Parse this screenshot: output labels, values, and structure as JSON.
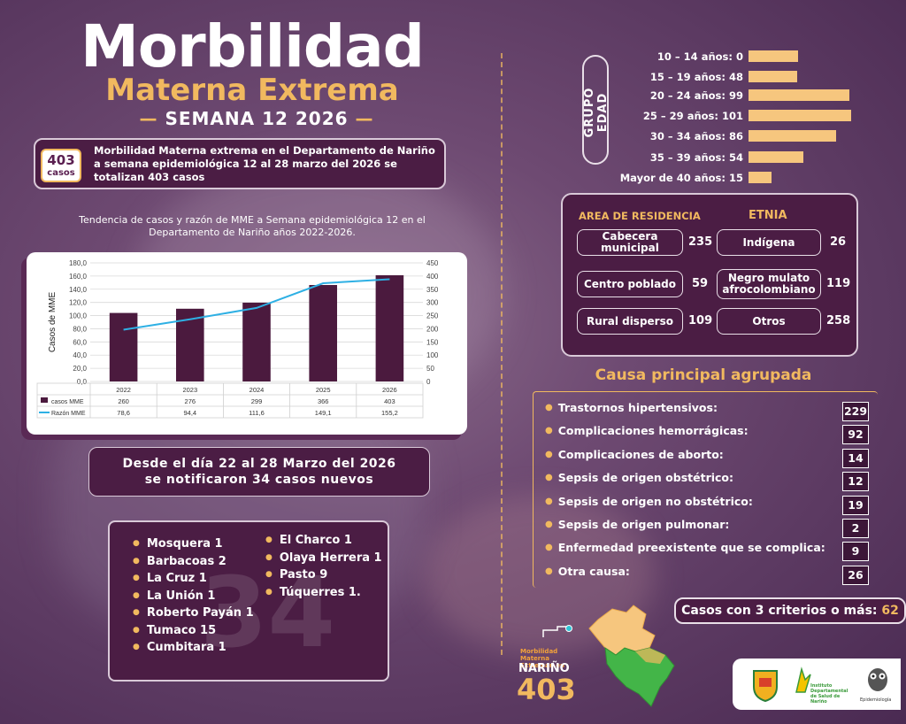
{
  "header": {
    "title_line1": "Morbilidad",
    "title_line2": "Materna Extrema",
    "week_line": "SEMANA 12 2026"
  },
  "summary": {
    "badge_number": "403",
    "badge_label": "casos",
    "text": "Morbilidad Materna extrema en el Departamento de Nariño a semana epidemiológica 12 al 28 marzo del 2026 se totalizan 403 casos"
  },
  "chart_section": {
    "title": "Tendencia de casos y razón de MME a Semana epidemiológica 12 en el Departamento de Nariño años 2022-2026."
  },
  "chart_data": {
    "type": "bar",
    "categories": [
      "2022",
      "2023",
      "2024",
      "2025",
      "2026"
    ],
    "series": [
      {
        "name": "casos MME",
        "type": "bar",
        "axis": "right",
        "values": [
          260,
          276,
          299,
          366,
          403
        ]
      },
      {
        "name": "Razón MME",
        "type": "line",
        "axis": "left",
        "values": [
          78.6,
          94.4,
          111.6,
          149.1,
          155.2
        ]
      }
    ],
    "table_rows": [
      {
        "label": "casos MME",
        "values": [
          "260",
          "276",
          "299",
          "366",
          "403"
        ]
      },
      {
        "label": "Razón MME",
        "values": [
          "78,6",
          "94,4",
          "111,6",
          "149,1",
          "155,2"
        ]
      }
    ],
    "ylabel": "Casos de MME",
    "ylim_left": [
      0,
      180
    ],
    "ylim_right": [
      0,
      450
    ],
    "left_ticks": [
      "180,0",
      "160,0",
      "140,0",
      "120,0",
      "100,0",
      "80,0",
      "60,0",
      "40,0",
      "20,0",
      "0,0"
    ],
    "right_ticks": [
      "450",
      "400",
      "350",
      "300",
      "250",
      "200",
      "150",
      "100",
      "50",
      "0"
    ],
    "bar_color": "#4b1a3e",
    "line_color": "#2eb0e4",
    "grid": true
  },
  "news": {
    "line1": "Desde el día 22 al 28 Marzo del 2026",
    "line2": "se notificaron 34 casos nuevos",
    "watermark_number": "34"
  },
  "municipalities": {
    "col1": [
      "Mosquera 1",
      "Barbacoas 2",
      "La Cruz 1",
      "La Unión 1",
      "Roberto Payán 1",
      "Tumaco 15",
      "Cumbitara 1"
    ],
    "col2": [
      "El Charco 1",
      "Olaya Herrera 1",
      "Pasto 9",
      "Túquerres 1."
    ]
  },
  "age_group": {
    "label": "GRUPO EDAD",
    "rows": [
      {
        "label": "10 – 14  años:  0",
        "value": 0
      },
      {
        "label": "15 – 19 años:  48",
        "value": 48
      },
      {
        "label": "20 – 24 años: 99",
        "value": 99
      },
      {
        "label": "25 – 29 años: 101",
        "value": 101
      },
      {
        "label": "30 – 34 años: 86",
        "value": 86
      },
      {
        "label": "35 – 39 años: 54",
        "value": 54
      },
      {
        "label": "Mayor de 40 años: 15",
        "value": 15
      }
    ]
  },
  "residence": {
    "head": "AREA DE RESIDENCIA",
    "items": [
      {
        "label": "Cabecera municipal",
        "value": "235"
      },
      {
        "label": "Centro poblado",
        "value": "59"
      },
      {
        "label": "Rural disperso",
        "value": "109"
      }
    ]
  },
  "ethnicity": {
    "head": "ETNIA",
    "items": [
      {
        "label": "Indígena",
        "value": "26"
      },
      {
        "label": "Negro mulato afrocolombiano",
        "value": "119"
      },
      {
        "label": "Otros",
        "value": "258"
      }
    ]
  },
  "causes": {
    "title": "Causa principal agrupada",
    "items": [
      {
        "label": "Trastornos hipertensivos:",
        "value": "229"
      },
      {
        "label": "Complicaciones hemorrágicas:",
        "value": "92"
      },
      {
        "label": "Complicaciones de aborto:",
        "value": "14"
      },
      {
        "label": "Sepsis de origen obstétrico:",
        "value": "12"
      },
      {
        "label": "Sepsis de origen no obstétrico:",
        "value": "19"
      },
      {
        "label": "Sepsis de origen pulmonar:",
        "value": "2"
      },
      {
        "label": "Enfermedad preexistente que se complica:",
        "value": "9"
      },
      {
        "label": "Otra causa:",
        "value": "26"
      }
    ]
  },
  "criteria": {
    "label": "Casos con 3 criterios o más:",
    "value": "62"
  },
  "map": {
    "small_label": "Morbilidad Materna Extreman en",
    "region": "NARIÑO",
    "total": "403"
  },
  "logos": {
    "institute": "Instituto Departamental de Salud de Nariño",
    "epi": "Epidemiología"
  },
  "colors": {
    "background": "#6e4a72",
    "panel": "#4b1d44",
    "accent": "#f1b95f",
    "bar": "#f6c67e"
  }
}
